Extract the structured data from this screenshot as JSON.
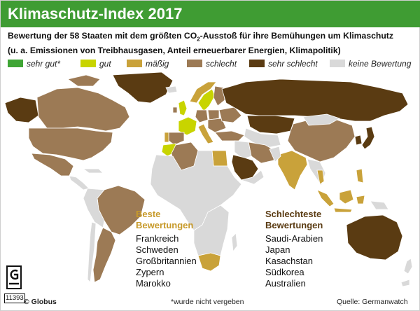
{
  "header": {
    "title": "Klimaschutz-Index 2017"
  },
  "subtitle": {
    "line1_pre": "Bewertung der 58 Staaten mit dem größten CO",
    "line1_sub": "2",
    "line1_post": "-Ausstoß für ihre Bemühungen um Klimaschutz",
    "line2": "(u. a. Emissionen von Treibhausgasen, Anteil erneuerbarer Energien, Klimapolitik)"
  },
  "legend": [
    {
      "label": "sehr gut*",
      "color": "#3fa535"
    },
    {
      "label": "gut",
      "color": "#c8d400"
    },
    {
      "label": "mäßig",
      "color": "#c9a23a"
    },
    {
      "label": "schlecht",
      "color": "#9c7a55"
    },
    {
      "label": "sehr schlecht",
      "color": "#5a3b12"
    },
    {
      "label": "keine Bewertung",
      "color": "#d9d9d9"
    }
  ],
  "best": {
    "title_line1": "Beste",
    "title_line2": "Bewertungen",
    "items": [
      "Frankreich",
      "Schweden",
      "Großbritannien",
      "Zypern",
      "Marokko"
    ]
  },
  "worst": {
    "title_line1": "Schlechteste",
    "title_line2": "Bewertungen",
    "items": [
      "Saudi-Arabien",
      "Japan",
      "Kasachstan",
      "Südkorea",
      "Australien"
    ]
  },
  "footer": {
    "footnote": "*wurde nicht vergeben",
    "source": "Quelle: Germanwatch",
    "brand": "© Globus",
    "logo_id": "11393"
  }
}
